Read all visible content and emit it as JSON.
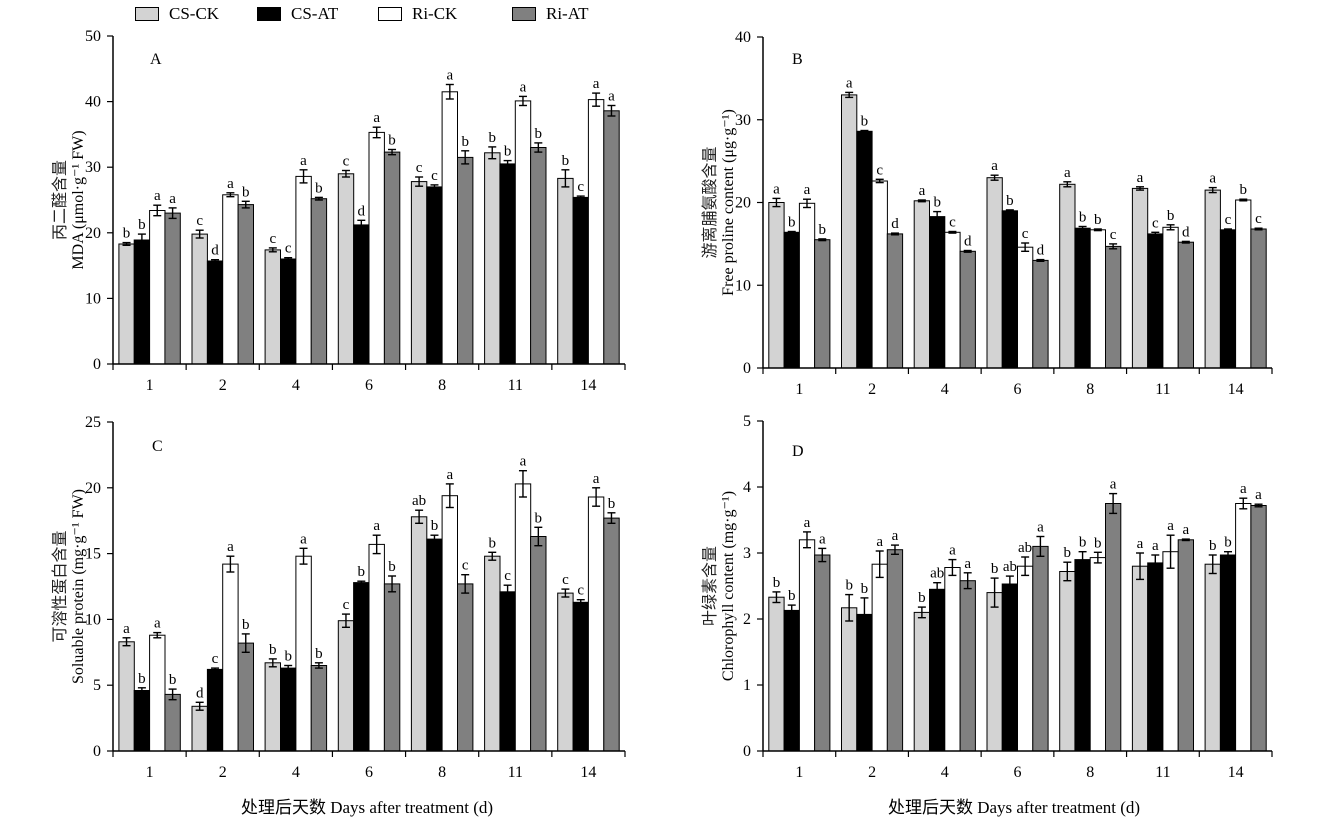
{
  "legend": {
    "items": [
      {
        "label": "CS-CK",
        "color": "#d3d3d3"
      },
      {
        "label": "CS-AT",
        "color": "#000000"
      },
      {
        "label": "Ri-CK",
        "color": "#ffffff"
      },
      {
        "label": "Ri-AT",
        "color": "#808080"
      }
    ]
  },
  "x_axis_title_left": "处理后天数 Days after treatment (d)",
  "x_axis_title_right": "处理后天数 Days after treatment (d)",
  "chart_data": [
    {
      "type": "bar",
      "panel_label": "A",
      "ylabel_cn": "丙二醛含量",
      "ylabel_en": "MDA (μmol·g⁻¹ FW)",
      "categories": [
        "1",
        "2",
        "4",
        "6",
        "8",
        "11",
        "14"
      ],
      "ylim": [
        0,
        50
      ],
      "yticks": [
        0,
        10,
        20,
        30,
        40,
        50
      ],
      "series": [
        {
          "name": "CS-CK",
          "values": [
            18.3,
            19.8,
            17.4,
            29.0,
            27.8,
            32.2,
            28.3
          ],
          "errors": [
            0.2,
            0.6,
            0.3,
            0.5,
            0.7,
            0.9,
            1.3
          ],
          "letters": [
            "b",
            "c",
            "c",
            "c",
            "c",
            "b",
            "b"
          ]
        },
        {
          "name": "CS-AT",
          "values": [
            18.9,
            15.7,
            16.0,
            21.2,
            27.0,
            30.5,
            25.4
          ],
          "errors": [
            0.9,
            0.2,
            0.2,
            0.7,
            0.3,
            0.5,
            0.2
          ],
          "letters": [
            "b",
            "d",
            "c",
            "d",
            "c",
            "b",
            "c"
          ]
        },
        {
          "name": "Ri-CK",
          "values": [
            23.4,
            25.8,
            28.6,
            35.3,
            41.5,
            40.1,
            40.3
          ],
          "errors": [
            0.8,
            0.3,
            1.0,
            0.8,
            1.1,
            0.7,
            1.0
          ],
          "letters": [
            "a",
            "a",
            "a",
            "a",
            "a",
            "a",
            "a"
          ]
        },
        {
          "name": "Ri-AT",
          "values": [
            23.0,
            24.3,
            25.2,
            32.3,
            31.5,
            33.0,
            38.6
          ],
          "errors": [
            0.8,
            0.5,
            0.2,
            0.4,
            1.0,
            0.7,
            0.8
          ],
          "letters": [
            "a",
            "b",
            "b",
            "b",
            "b",
            "b",
            "a"
          ]
        }
      ]
    },
    {
      "type": "bar",
      "panel_label": "B",
      "ylabel_cn": "游离脯氨酸含量",
      "ylabel_en": "Free proline content (μg·g⁻¹)",
      "categories": [
        "1",
        "2",
        "4",
        "6",
        "8",
        "11",
        "14"
      ],
      "ylim": [
        0,
        40
      ],
      "yticks": [
        0,
        10,
        20,
        30,
        40
      ],
      "series": [
        {
          "name": "CS-CK",
          "values": [
            20.0,
            33.0,
            20.2,
            23.0,
            22.2,
            21.7,
            21.5
          ],
          "errors": [
            0.5,
            0.3,
            0.1,
            0.3,
            0.3,
            0.2,
            0.3
          ],
          "letters": [
            "a",
            "a",
            "a",
            "a",
            "a",
            "a",
            "a"
          ]
        },
        {
          "name": "CS-AT",
          "values": [
            16.4,
            28.6,
            18.3,
            19.0,
            16.9,
            16.2,
            16.7
          ],
          "errors": [
            0.1,
            0.1,
            0.6,
            0.1,
            0.2,
            0.2,
            0.1
          ],
          "letters": [
            "b",
            "b",
            "b",
            "b",
            "b",
            "c",
            "c"
          ]
        },
        {
          "name": "Ri-CK",
          "values": [
            19.9,
            22.6,
            16.4,
            14.6,
            16.7,
            17.0,
            20.3
          ],
          "errors": [
            0.5,
            0.2,
            0.1,
            0.5,
            0.1,
            0.3,
            0.1
          ],
          "letters": [
            "a",
            "c",
            "c",
            "c",
            "b",
            "b",
            "b"
          ]
        },
        {
          "name": "Ri-AT",
          "values": [
            15.5,
            16.2,
            14.1,
            13.0,
            14.7,
            15.2,
            16.8
          ],
          "errors": [
            0.1,
            0.1,
            0.1,
            0.1,
            0.3,
            0.1,
            0.1
          ],
          "letters": [
            "b",
            "d",
            "d",
            "d",
            "c",
            "d",
            "c"
          ]
        }
      ]
    },
    {
      "type": "bar",
      "panel_label": "C",
      "ylabel_cn": "可溶性蛋白含量",
      "ylabel_en": "Soluable protein (mg·g⁻¹ FW)",
      "categories": [
        "1",
        "2",
        "4",
        "6",
        "8",
        "11",
        "14"
      ],
      "ylim": [
        0,
        25
      ],
      "yticks": [
        0,
        5,
        10,
        15,
        20,
        25
      ],
      "series": [
        {
          "name": "CS-CK",
          "values": [
            8.3,
            3.4,
            6.7,
            9.9,
            17.8,
            14.8,
            12.0
          ],
          "errors": [
            0.3,
            0.3,
            0.3,
            0.5,
            0.5,
            0.3,
            0.3
          ],
          "letters": [
            "a",
            "d",
            "b",
            "c",
            "ab",
            "b",
            "c"
          ]
        },
        {
          "name": "CS-AT",
          "values": [
            4.6,
            6.2,
            6.3,
            12.8,
            16.1,
            12.1,
            11.3
          ],
          "errors": [
            0.2,
            0.1,
            0.2,
            0.1,
            0.3,
            0.5,
            0.2
          ],
          "letters": [
            "b",
            "c",
            "b",
            "b",
            "b",
            "c",
            "c"
          ]
        },
        {
          "name": "Ri-CK",
          "values": [
            8.8,
            14.2,
            14.8,
            15.7,
            19.4,
            20.3,
            19.3
          ],
          "errors": [
            0.2,
            0.6,
            0.6,
            0.7,
            0.9,
            1.0,
            0.7
          ],
          "letters": [
            "a",
            "a",
            "a",
            "a",
            "a",
            "a",
            "a"
          ]
        },
        {
          "name": "Ri-AT",
          "values": [
            4.3,
            8.2,
            6.5,
            12.7,
            12.7,
            16.3,
            17.7
          ],
          "errors": [
            0.4,
            0.7,
            0.2,
            0.6,
            0.7,
            0.7,
            0.4
          ],
          "letters": [
            "b",
            "b",
            "b",
            "b",
            "c",
            "b",
            "b"
          ]
        }
      ]
    },
    {
      "type": "bar",
      "panel_label": "D",
      "ylabel_cn": "叶绿素含量",
      "ylabel_en": "Chlorophyll content (mg·g⁻¹)",
      "categories": [
        "1",
        "2",
        "4",
        "6",
        "8",
        "11",
        "14"
      ],
      "ylim": [
        0,
        5
      ],
      "yticks": [
        0,
        1,
        2,
        3,
        4,
        5
      ],
      "series": [
        {
          "name": "CS-CK",
          "values": [
            2.33,
            2.17,
            2.1,
            2.4,
            2.72,
            2.8,
            2.83
          ],
          "errors": [
            0.08,
            0.2,
            0.08,
            0.22,
            0.14,
            0.2,
            0.14
          ],
          "letters": [
            "b",
            "b",
            "b",
            "b",
            "b",
            "a",
            "b"
          ]
        },
        {
          "name": "CS-AT",
          "values": [
            2.13,
            2.07,
            2.45,
            2.53,
            2.9,
            2.85,
            2.97
          ],
          "errors": [
            0.08,
            0.25,
            0.1,
            0.12,
            0.12,
            0.12,
            0.05
          ],
          "letters": [
            "b",
            "b",
            "ab",
            "ab",
            "b",
            "a",
            "b"
          ]
        },
        {
          "name": "Ri-CK",
          "values": [
            3.2,
            2.83,
            2.78,
            2.8,
            2.93,
            3.02,
            3.75
          ],
          "errors": [
            0.12,
            0.2,
            0.12,
            0.14,
            0.08,
            0.25,
            0.08
          ],
          "letters": [
            "a",
            "a",
            "a",
            "ab",
            "b",
            "a",
            "a"
          ]
        },
        {
          "name": "Ri-AT",
          "values": [
            2.97,
            3.05,
            2.58,
            3.1,
            3.75,
            3.2,
            3.72
          ],
          "errors": [
            0.1,
            0.07,
            0.12,
            0.15,
            0.15,
            0.01,
            0.02
          ],
          "letters": [
            "a",
            "a",
            "a",
            "a",
            "a",
            "a",
            "a"
          ]
        }
      ]
    }
  ]
}
